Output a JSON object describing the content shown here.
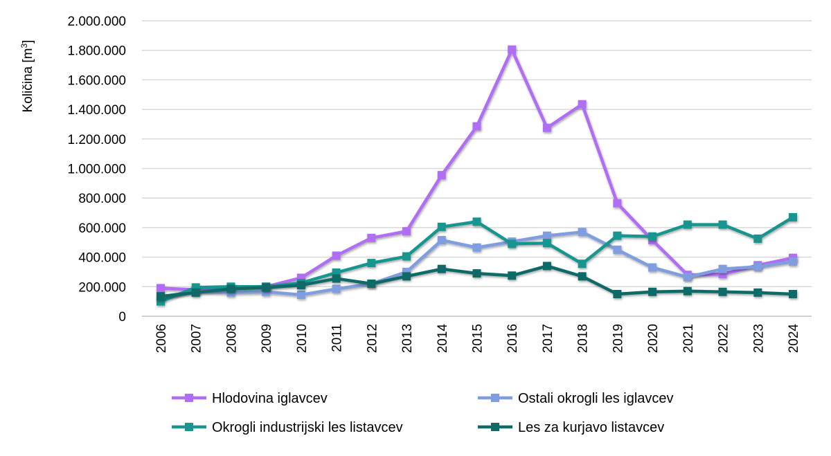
{
  "chart_data": {
    "type": "line",
    "title": "",
    "xlabel": "",
    "ylabel": "Količina [m3]",
    "ylabel_base": "Količina [m",
    "ylabel_sup": "3",
    "ylabel_close": "]",
    "ylim": [
      0,
      2000000
    ],
    "yticks": [
      0,
      200000,
      400000,
      600000,
      800000,
      1000000,
      1200000,
      1400000,
      1600000,
      1800000,
      2000000
    ],
    "ytick_labels": [
      "0",
      "200.000",
      "400.000",
      "600.000",
      "800.000",
      "1.000.000",
      "1.200.000",
      "1.400.000",
      "1.600.000",
      "1.800.000",
      "2.000.000"
    ],
    "grid": true,
    "legend_position": "bottom",
    "categories": [
      "2006",
      "2007",
      "2008",
      "2009",
      "2010",
      "2011",
      "2012",
      "2013",
      "2014",
      "2015",
      "2016",
      "2017",
      "2018",
      "2019",
      "2020",
      "2021",
      "2022",
      "2023",
      "2024"
    ],
    "series": [
      {
        "name": "Hlodovina iglavcev",
        "color": "#b06ef5",
        "values": [
          190000,
          180000,
          190000,
          200000,
          260000,
          410000,
          530000,
          575000,
          955000,
          1285000,
          1805000,
          1275000,
          1435000,
          765000,
          515000,
          280000,
          285000,
          345000,
          395000
        ]
      },
      {
        "name": "Ostali okrogli les iglavcev",
        "color": "#7f9ee0",
        "values": [
          130000,
          170000,
          160000,
          165000,
          145000,
          185000,
          220000,
          300000,
          515000,
          465000,
          505000,
          545000,
          570000,
          450000,
          330000,
          265000,
          320000,
          335000,
          370000
        ]
      },
      {
        "name": "Okrogli industrijski les listavcev",
        "color": "#17968f",
        "values": [
          100000,
          195000,
          200000,
          200000,
          225000,
          295000,
          360000,
          405000,
          605000,
          640000,
          490000,
          495000,
          355000,
          545000,
          540000,
          620000,
          620000,
          525000,
          670000
        ]
      },
      {
        "name": "Les za kurjavo listavcev",
        "color": "#0f6b66",
        "values": [
          135000,
          160000,
          185000,
          195000,
          210000,
          255000,
          220000,
          270000,
          320000,
          290000,
          275000,
          340000,
          270000,
          150000,
          165000,
          170000,
          165000,
          160000,
          150000
        ]
      }
    ]
  }
}
